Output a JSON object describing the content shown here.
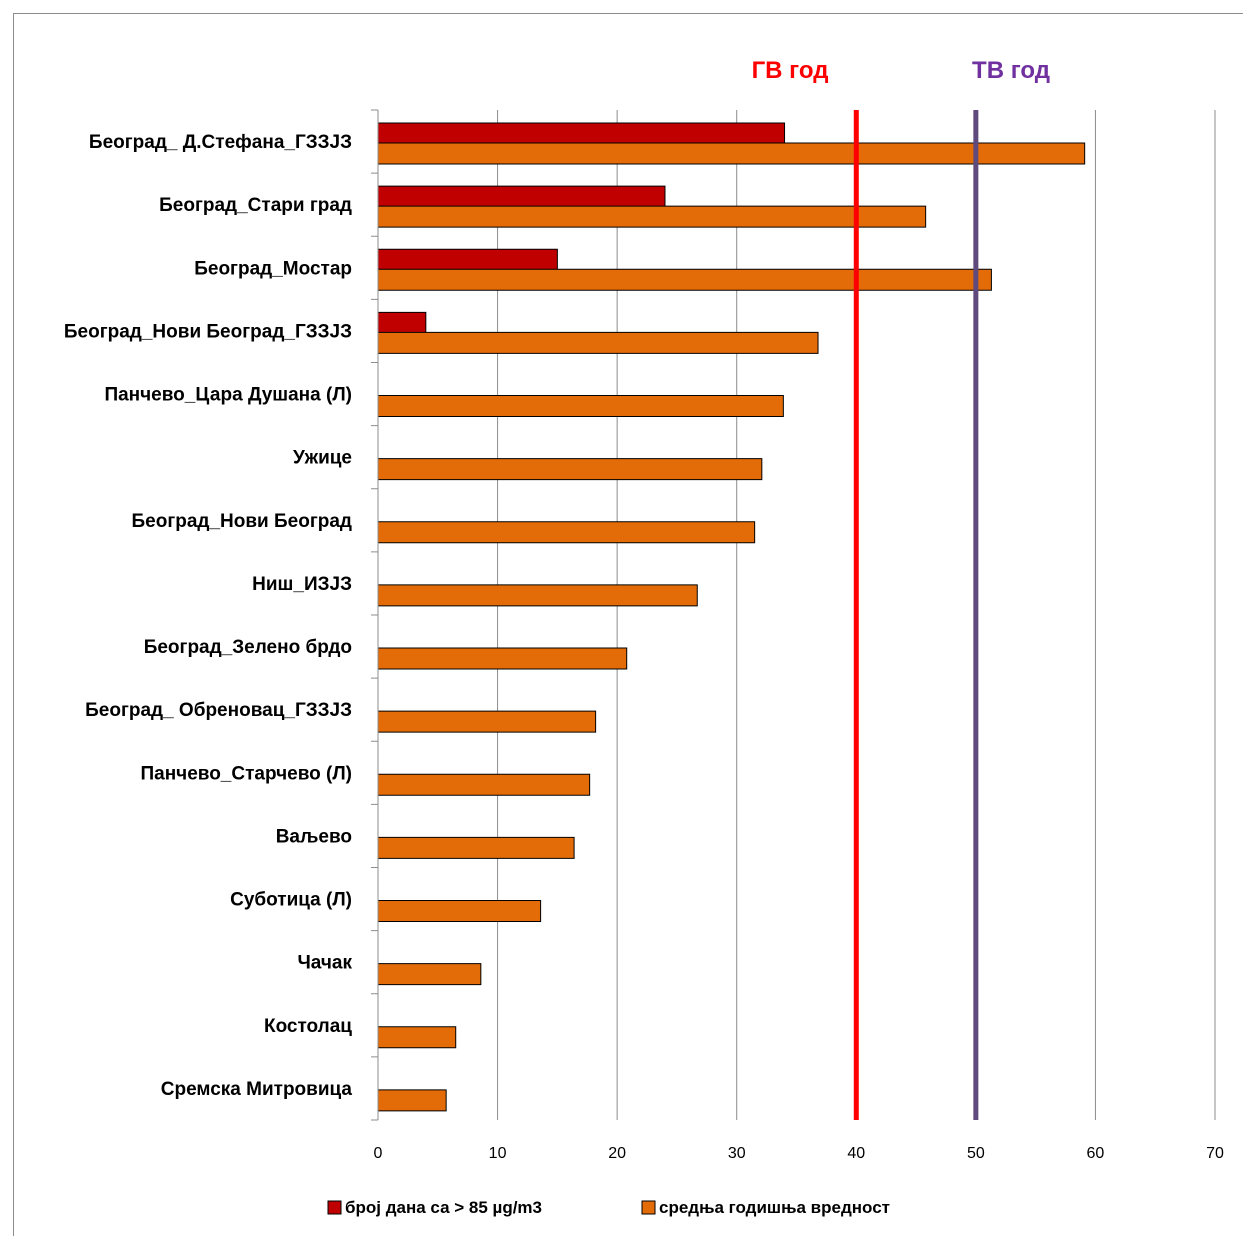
{
  "chart_data": {
    "type": "bar",
    "orientation": "horizontal",
    "categories": [
      "Београд_ Д.Стефана_ГЗЗЈЗ",
      "Београд_Стари град",
      "Београд_Мостар",
      "Београд_Нови Београд_ГЗЗЈЗ",
      "Панчево_Цара Душана (Л)",
      "Ужице",
      "Београд_Нови Београд",
      "Ниш_ИЗЈЗ",
      "Београд_Зелено брдо",
      "Београд_ Обреновац_ГЗЗЈЗ",
      "Панчево_Старчево (Л)",
      "Ваљево",
      "Суботица (Л)",
      "Чачак",
      "Костолац",
      "Сремска Митровица"
    ],
    "series": [
      {
        "name": "број дана са  > 85 µg/m3",
        "color": "#c00000",
        "values": [
          34,
          24,
          15,
          4,
          null,
          null,
          null,
          null,
          null,
          null,
          null,
          null,
          null,
          null,
          null,
          null
        ]
      },
      {
        "name": "средња годишња вредност",
        "color": "#e36c09",
        "values": [
          59.1,
          45.8,
          51.3,
          36.8,
          33.9,
          32.1,
          31.5,
          26.7,
          20.8,
          18.2,
          17.7,
          16.4,
          13.6,
          8.6,
          6.5,
          5.7
        ]
      }
    ],
    "xlim": [
      0,
      70
    ],
    "xticks": [
      "0",
      "10",
      "20",
      "30",
      "40",
      "50",
      "60",
      "70"
    ],
    "grid": true,
    "legend_position": "bottom",
    "reference_lines": [
      {
        "label": "ГВ год",
        "value": 40,
        "color": "#ff0000"
      },
      {
        "label": "ТВ год",
        "value": 50,
        "color": "#604a7b",
        "label_color": "#7030a0"
      }
    ]
  }
}
